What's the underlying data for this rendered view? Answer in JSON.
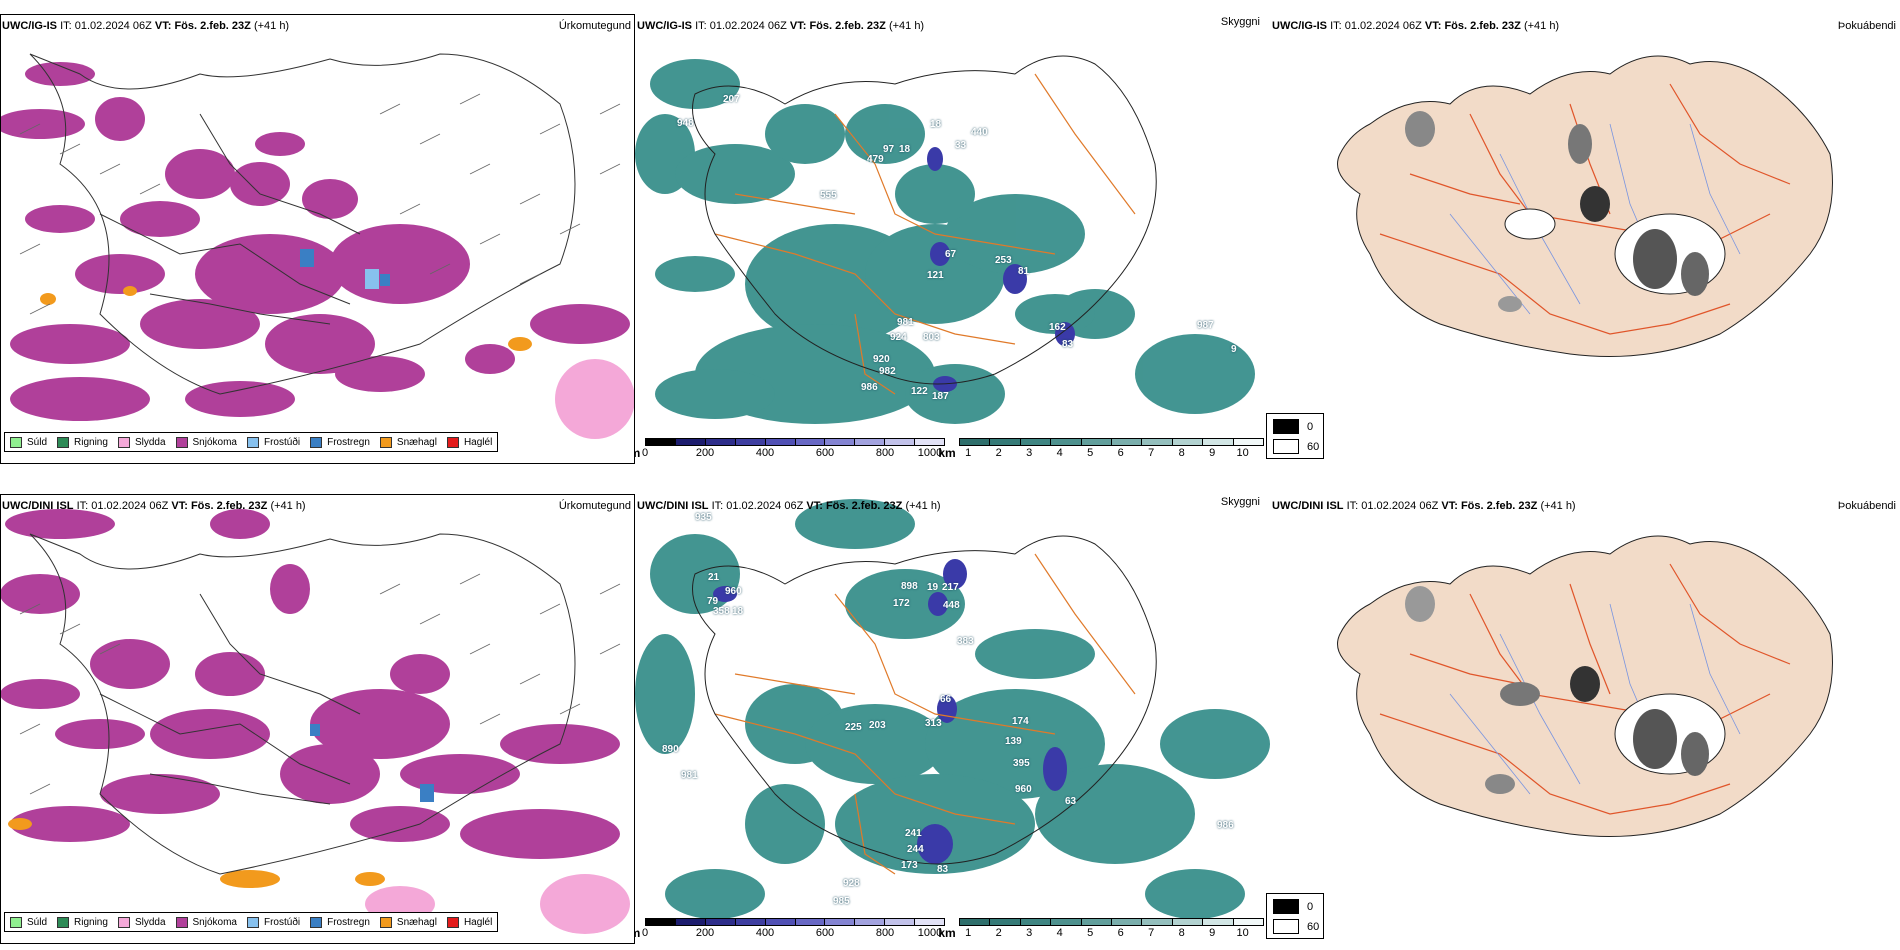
{
  "rows": [
    {
      "model": "UWC/IG-IS",
      "it_label": "IT:",
      "it_value": "01.02.2024 06Z",
      "vt_label": "VT:",
      "vt_value": "Fös. 2.feb. 23Z",
      "lead": "(+41 h)",
      "panel1_right": "Úrkomutegund",
      "panel2_right": "Skyggni",
      "panel3_right": "Þokuábendi",
      "heights": [
        "207",
        "948",
        "18",
        "440",
        "33",
        "97",
        "18",
        "479",
        "555",
        "67",
        "253",
        "81",
        "121",
        "981",
        "924",
        "803",
        "162",
        "83",
        "920",
        "982",
        "986",
        "122",
        "187",
        "987",
        "9"
      ]
    },
    {
      "model": "UWC/DINI ISL",
      "it_label": "IT:",
      "it_value": "01.02.2024 06Z",
      "vt_label": "VT:",
      "vt_value": "Fös. 2.feb. 23Z",
      "lead": "(+41 h)",
      "panel1_right": "Úrkomutegund",
      "panel2_right": "Skyggni",
      "panel3_right": "Þokuábendi",
      "heights": [
        "935",
        "21",
        "960",
        "898",
        "217",
        "19",
        "79",
        "358",
        "18",
        "172",
        "448",
        "383",
        "66",
        "225",
        "203",
        "313",
        "174",
        "139",
        "890",
        "981",
        "395",
        "960",
        "63",
        "241",
        "244",
        "173",
        "83",
        "928",
        "985",
        "986"
      ]
    }
  ],
  "precip_legend": [
    {
      "label": "Súld",
      "color": "#90ee90"
    },
    {
      "label": "Rigning",
      "color": "#2e8b57"
    },
    {
      "label": "Slydda",
      "color": "#f4a8d8"
    },
    {
      "label": "Snjókoma",
      "color": "#b0409a"
    },
    {
      "label": "Frostúði",
      "color": "#87c1ee"
    },
    {
      "label": "Frostregn",
      "color": "#3a7fc4"
    },
    {
      "label": "Snæhagl",
      "color": "#f29a1d"
    },
    {
      "label": "Haglél",
      "color": "#e31b1b"
    }
  ],
  "height_bar": {
    "unit": "m",
    "labels": [
      "0",
      "200",
      "400",
      "600",
      "800",
      "1000"
    ]
  },
  "vis_bar": {
    "unit": "km",
    "labels": [
      "1",
      "2",
      "3",
      "4",
      "5",
      "6",
      "7",
      "8",
      "9",
      "10"
    ]
  },
  "fog_legend": {
    "labels": [
      "0",
      "60"
    ]
  },
  "colors": {
    "snow": "#b0409a",
    "sleet": "#f4a8d8",
    "freezing": "#87c1ee",
    "frostregn": "#3a7fc4",
    "snowhail": "#f29a1d",
    "fog_teal": "#2f8a86",
    "land_peach": "#f2dbc8",
    "roads": "#e0552a",
    "rivers": "#7894e0"
  }
}
